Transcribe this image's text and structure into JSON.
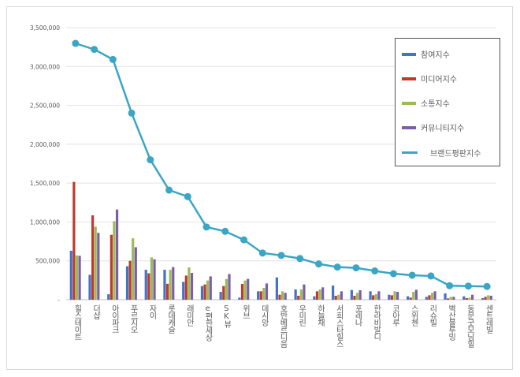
{
  "chart_data": {
    "type": "bar",
    "categories": [
      "힐스테이트",
      "더샵",
      "아이파크",
      "푸르지오",
      "자이",
      "롯데캐슬",
      "래미안",
      "e편한세상",
      "SK뷰",
      "위브",
      "데시앙",
      "호반베르디움",
      "우미린",
      "하늘채",
      "서희스타힐스",
      "포레나",
      "한라비발디",
      "코아루",
      "스위첸",
      "리슈빌",
      "벽산블루밍",
      "동문굿모닝힐",
      "센트레빌"
    ],
    "ylim": [
      0,
      3500000
    ],
    "yticks": [
      "-",
      "500,000",
      "1,000,000",
      "1,500,000",
      "2,000,000",
      "2,500,000",
      "3,000,000",
      "3,500,000"
    ],
    "grid": true,
    "legend_position": "top-right",
    "series": [
      {
        "name": "참여지수",
        "type": "bar",
        "color": "#4472c4",
        "values": [
          630000,
          320000,
          70000,
          430000,
          385000,
          385000,
          230000,
          175000,
          101000,
          27000,
          108000,
          287000,
          132000,
          44000,
          182000,
          125000,
          108000,
          64000,
          44000,
          37000,
          81000,
          44000,
          20000
        ]
      },
      {
        "name": "미디어지수",
        "type": "bar",
        "color": "#c0392b",
        "values": [
          1515000,
          1085000,
          835000,
          500000,
          340000,
          205000,
          310000,
          196000,
          176000,
          203000,
          108000,
          64000,
          51000,
          108000,
          51000,
          51000,
          57000,
          57000,
          27000,
          57000,
          17000,
          20000,
          37000
        ]
      },
      {
        "name": "소통지수",
        "type": "bar",
        "color": "#9bbb59",
        "values": [
          570000,
          940000,
          1010000,
          790000,
          545000,
          385000,
          415000,
          247000,
          267000,
          247000,
          152000,
          108000,
          132000,
          132000,
          64000,
          88000,
          71000,
          108000,
          101000,
          88000,
          37000,
          27000,
          57000
        ]
      },
      {
        "name": "커뮤니티지수",
        "type": "bar",
        "color": "#7b5ea7",
        "values": [
          565000,
          860000,
          1160000,
          675000,
          520000,
          420000,
          345000,
          300000,
          331000,
          267000,
          209000,
          88000,
          196000,
          159000,
          108000,
          122000,
          108000,
          101000,
          128000,
          108000,
          37000,
          64000,
          51000
        ]
      },
      {
        "name": "브랜드평판지수",
        "type": "line",
        "color": "#3aa6c4",
        "values": [
          3297000,
          3220000,
          3090000,
          2400000,
          1800000,
          1410000,
          1326000,
          935000,
          880000,
          770000,
          600000,
          570000,
          530000,
          460000,
          420000,
          410000,
          370000,
          335000,
          315000,
          305000,
          180000,
          175000,
          170000
        ]
      }
    ]
  }
}
